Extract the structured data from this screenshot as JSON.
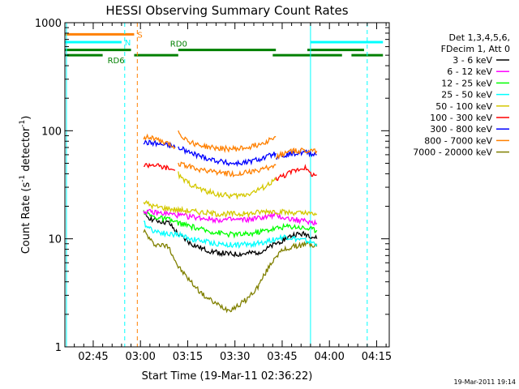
{
  "chart_data": {
    "type": "line",
    "title": "HESSI Observing Summary Count Rates",
    "xlabel": "Start Time (19-Mar-11 02:36:22)",
    "ylabel_main": "Count Rate (s",
    "ylabel_sup1": "-1",
    "ylabel_mid": " detector",
    "ylabel_sup2": "-1",
    "ylabel_end": ")",
    "footer": "19-Mar-2011 19:14",
    "yscale": "log",
    "ylim": [
      1,
      1000
    ],
    "xlim_minutes": [
      0,
      103
    ],
    "x_ticks": [
      {
        "m": 9,
        "label": "02:45"
      },
      {
        "m": 24,
        "label": "03:00"
      },
      {
        "m": 39,
        "label": "03:15"
      },
      {
        "m": 54,
        "label": "03:30"
      },
      {
        "m": 69,
        "label": "03:45"
      },
      {
        "m": 84,
        "label": "04:00"
      },
      {
        "m": 99,
        "label": "04:15"
      }
    ],
    "y_ticks": [
      {
        "v": 1,
        "label": "1"
      },
      {
        "v": 10,
        "label": "10"
      },
      {
        "v": 100,
        "label": "100"
      },
      {
        "v": 1000,
        "label": "1000"
      }
    ],
    "legend": {
      "header1": "Det 1,3,4,5,6,",
      "header2": "FDecim 1, Att 0",
      "entries": [
        {
          "label": "3 - 6 keV",
          "color": "#000000"
        },
        {
          "label": "6 - 12 keV",
          "color": "#ff00ff"
        },
        {
          "label": "12 - 25 keV",
          "color": "#00ff00"
        },
        {
          "label": "25 - 50 keV",
          "color": "#00ffff"
        },
        {
          "label": "50 - 100 keV",
          "color": "#d4c800"
        },
        {
          "label": "100 - 300 keV",
          "color": "#ff0000"
        },
        {
          "label": "300 - 800 keV",
          "color": "#0000ff"
        },
        {
          "label": "800 - 7000 keV",
          "color": "#ff8000"
        },
        {
          "label": "7000 - 20000 keV",
          "color": "#808000"
        }
      ]
    },
    "flags": [
      {
        "label": "S",
        "color": "#ff8000",
        "y": 780,
        "segments": [
          [
            0,
            22
          ]
        ]
      },
      {
        "label": "N",
        "color": "#00ffff",
        "y": 660,
        "segments": [
          [
            0,
            18
          ],
          [
            78,
            101
          ]
        ]
      },
      {
        "label": "RD0",
        "color": "#008000",
        "y": 560,
        "segments": [
          [
            0,
            21
          ],
          [
            36,
            67
          ],
          [
            77,
            95
          ]
        ]
      },
      {
        "label": "RD6",
        "color": "#008000",
        "y": 500,
        "segments": [
          [
            0,
            12
          ],
          [
            22,
            36
          ],
          [
            66,
            88
          ],
          [
            91,
            101
          ]
        ]
      }
    ],
    "vlines": [
      {
        "m": 0.5,
        "color": "#00ffff",
        "style": "solid"
      },
      {
        "m": 19,
        "color": "#00ffff",
        "style": "dashed"
      },
      {
        "m": 23,
        "color": "#ff8000",
        "style": "dashed"
      },
      {
        "m": 78,
        "color": "#00ffff",
        "style": "solid"
      },
      {
        "m": 96,
        "color": "#00ffff",
        "style": "dashed"
      }
    ],
    "series": [
      {
        "color": "#808000",
        "segments": [
          {
            "x": [
              25,
              28,
              33,
              36,
              40,
              44,
              48,
              52,
              55,
              58,
              61,
              64,
              67,
              70,
              73,
              77,
              80
            ],
            "y": [
              12,
              9,
              8.5,
              5.5,
              4,
              3,
              2.5,
              2.2,
              2.4,
              2.8,
              3.5,
              5,
              7,
              8,
              8.5,
              9,
              8.5
            ]
          }
        ]
      },
      {
        "color": "#000000",
        "segments": [
          {
            "x": [
              25,
              28,
              33,
              36,
              40,
              44,
              48,
              52,
              55,
              58,
              61,
              64,
              67,
              70,
              73,
              77,
              80
            ],
            "y": [
              17,
              15,
              14,
              11,
              9,
              8,
              7.5,
              7.2,
              7.2,
              7.3,
              7.5,
              8,
              9,
              10,
              11,
              11,
              10
            ]
          }
        ]
      },
      {
        "color": "#00ffff",
        "segments": [
          {
            "x": [
              25,
              28,
              33,
              36,
              40,
              44,
              48,
              52,
              55,
              58,
              61,
              64,
              67,
              70,
              73,
              77,
              80
            ],
            "y": [
              14,
              12,
              11,
              11,
              10,
              9.5,
              9,
              8.8,
              8.8,
              8.9,
              9,
              9.5,
              10,
              10.5,
              10,
              9.5,
              9
            ]
          }
        ]
      },
      {
        "color": "#00ff00",
        "segments": [
          {
            "x": [
              25,
              28,
              33,
              36,
              40,
              44,
              48,
              52,
              55,
              58,
              61,
              64,
              67,
              70,
              73,
              77,
              80
            ],
            "y": [
              18,
              16,
              15,
              14,
              13,
              12,
              11.5,
              11,
              11,
              11,
              11.5,
              12,
              12.5,
              13,
              13,
              12.5,
              12
            ]
          }
        ]
      },
      {
        "color": "#ff00ff",
        "segments": [
          {
            "x": [
              25,
              28,
              33,
              36,
              40,
              44,
              48,
              52,
              55,
              58,
              61,
              64,
              67,
              70,
              73,
              77,
              80
            ],
            "y": [
              18,
              17.5,
              17,
              16.5,
              16,
              15.5,
              15,
              15,
              15,
              15,
              15.5,
              16,
              16.5,
              15.5,
              15,
              14.5,
              14
            ]
          }
        ]
      },
      {
        "color": "#d4c800",
        "segments": [
          {
            "x": [
              25,
              28,
              33,
              36,
              40,
              44,
              48,
              52,
              55,
              58,
              61,
              64,
              67,
              70,
              73,
              77,
              80
            ],
            "y": [
              22,
              20,
              19,
              18.5,
              18,
              17.5,
              17,
              17,
              17,
              17,
              17.5,
              18,
              18,
              17.5,
              17.5,
              17,
              17
            ]
          },
          {
            "x": [
              36,
              37,
              40,
              44,
              48,
              52,
              55,
              58,
              61,
              64,
              67
            ],
            "y": [
              40,
              36,
              32,
              28,
              26,
              25,
              25,
              26,
              28,
              31,
              35
            ]
          }
        ]
      },
      {
        "color": "#ff0000",
        "segments": [
          {
            "x": [
              25,
              28,
              30,
              33,
              35
            ],
            "y": [
              48,
              49,
              47,
              45,
              43
            ]
          },
          {
            "x": [
              67,
              70,
              73,
              76,
              78,
              80
            ],
            "y": [
              36,
              39,
              43,
              46,
              40,
              39
            ]
          }
        ]
      },
      {
        "color": "#0000ff",
        "segments": [
          {
            "x": [
              25,
              28,
              30,
              33,
              35
            ],
            "y": [
              78,
              77,
              75,
              73,
              70
            ]
          },
          {
            "x": [
              36,
              40,
              44,
              48,
              52,
              55,
              58,
              61,
              64,
              67
            ],
            "y": [
              70,
              62,
              57,
              53,
              50,
              50,
              51,
              54,
              57,
              62
            ]
          },
          {
            "x": [
              67,
              70,
              73,
              76,
              78,
              80
            ],
            "y": [
              57,
              60,
              62,
              63,
              62,
              60
            ]
          }
        ]
      },
      {
        "color": "#ff8000",
        "segments": [
          {
            "x": [
              25,
              28,
              30,
              33,
              35
            ],
            "y": [
              88,
              86,
              80,
              75,
              70
            ]
          },
          {
            "x": [
              36,
              37,
              40,
              44,
              48,
              52,
              55,
              58,
              61,
              64,
              67
            ],
            "y": [
              100,
              90,
              78,
              72,
              69,
              68,
              68,
              70,
              74,
              80,
              88
            ]
          },
          {
            "x": [
              67,
              70,
              73,
              76,
              78,
              80
            ],
            "y": [
              58,
              62,
              65,
              66,
              66,
              65
            ]
          },
          {
            "x": [
              36,
              40,
              44,
              48,
              52,
              55,
              58,
              61,
              64,
              67
            ],
            "y": [
              50,
              46,
              43,
              41,
              40,
              40,
              41,
              42,
              45,
              48
            ]
          }
        ]
      }
    ]
  }
}
